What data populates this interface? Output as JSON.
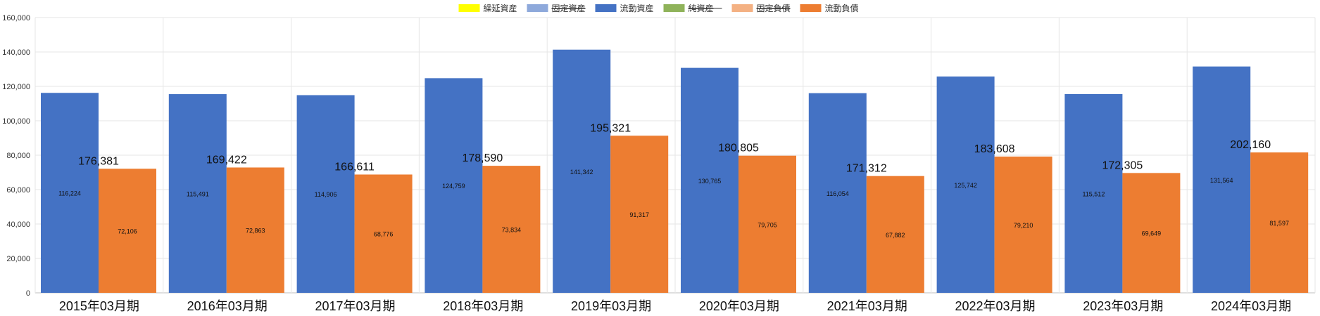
{
  "chart_data": {
    "type": "bar",
    "categories": [
      "2015年03月期",
      "2016年03月期",
      "2017年03月期",
      "2018年03月期",
      "2019年03月期",
      "2020年03月期",
      "2021年03月期",
      "2022年03月期",
      "2023年03月期",
      "2024年03月期"
    ],
    "series": [
      {
        "name": "流動資産",
        "color": "#4472C4",
        "values": [
          116224,
          115491,
          114906,
          124759,
          141342,
          130765,
          116054,
          125742,
          115512,
          131564
        ]
      },
      {
        "name": "流動負債",
        "color": "#ED7D31",
        "values": [
          72106,
          72863,
          68776,
          73834,
          91317,
          79705,
          67882,
          79210,
          69649,
          81597
        ]
      }
    ],
    "totals": [
      176381,
      169422,
      166611,
      178590,
      195321,
      180805,
      171312,
      183608,
      172305,
      202160
    ],
    "legend": [
      {
        "name": "繰延資産",
        "color": "#FFFF00",
        "hidden": false
      },
      {
        "name": "固定資産",
        "color": "#8EA9DB",
        "hidden": true
      },
      {
        "name": "流動資産",
        "color": "#4472C4",
        "hidden": false
      },
      {
        "name": "純資産",
        "color": "#8FB35A",
        "hidden": true
      },
      {
        "name": "固定負債",
        "color": "#F4B183",
        "hidden": true
      },
      {
        "name": "流動負債",
        "color": "#ED7D31",
        "hidden": false
      }
    ],
    "legend_position": "top-center",
    "ylim": [
      0,
      160000
    ],
    "yticks": [
      "0",
      "20,000",
      "40,000",
      "60,000",
      "80,000",
      "100,000",
      "120,000",
      "140,000",
      "160,000"
    ],
    "grid": true,
    "title": "",
    "xlabel": "",
    "ylabel": ""
  }
}
